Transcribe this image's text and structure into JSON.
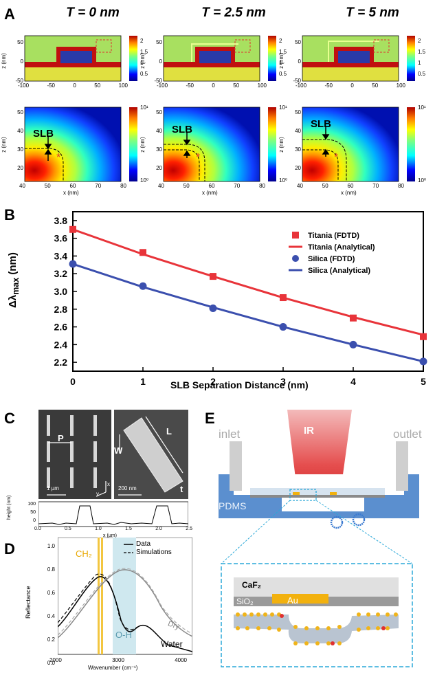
{
  "panels": {
    "A": {
      "label": "A",
      "titles": [
        "T = 0 nm",
        "T = 2.5 nm",
        "T = 5 nm"
      ],
      "top_colorbar_ticks": [
        "2",
        "1.5",
        "1",
        "0.5"
      ],
      "top_x_ticks": [
        "-100",
        "-50",
        "0",
        "50",
        "100"
      ],
      "top_y_ticks": [
        "50",
        "0",
        "-50"
      ],
      "top_ylabel": "z (nm)",
      "bottom_colorbar_ticks": [
        "10¹",
        "10⁰"
      ],
      "bottom_x_ticks": [
        "40",
        "50",
        "60",
        "70",
        "80"
      ],
      "bottom_y_ticks": [
        "50",
        "40",
        "30",
        "20"
      ],
      "bottom_xlabel": "x (nm)",
      "bottom_ylabel": "z (nm)",
      "slb_label": "SLB"
    },
    "B": {
      "label": "B",
      "chart_data": {
        "type": "line",
        "xlabel": "SLB Separation Distance (nm)",
        "ylabel": "Δλmax (nm)",
        "ylabel_main": "Δλ",
        "ylabel_sub": "max",
        "ylabel_unit": " (nm)",
        "x": [
          0,
          1,
          2,
          3,
          4,
          5
        ],
        "xlim": [
          0,
          5
        ],
        "ylim": [
          2.1,
          3.9
        ],
        "x_ticks": [
          "0",
          "1",
          "2",
          "3",
          "4",
          "5"
        ],
        "y_ticks": [
          "2.2",
          "2.4",
          "2.6",
          "2.8",
          "3.0",
          "3.2",
          "3.4",
          "3.6",
          "3.8"
        ],
        "legend_position": "top-right",
        "series": [
          {
            "name": "Titania (FDTD)",
            "kind": "markers",
            "marker": "square",
            "color": "#e8343a",
            "values": [
              3.7,
              3.44,
              3.17,
              2.93,
              2.7,
              2.49
            ]
          },
          {
            "name": "Titania (Analytical)",
            "kind": "line",
            "color": "#e8343a",
            "values": [
              3.7,
              3.42,
              3.17,
              2.93,
              2.71,
              2.51
            ]
          },
          {
            "name": "Silica (FDTD)",
            "kind": "markers",
            "marker": "circle",
            "color": "#3b4fae",
            "values": [
              3.31,
              3.06,
              2.81,
              2.6,
              2.4,
              2.21
            ]
          },
          {
            "name": "Silica (Analytical)",
            "kind": "line",
            "color": "#3b4fae",
            "values": [
              3.31,
              3.05,
              2.82,
              2.6,
              2.4,
              2.21
            ]
          }
        ]
      }
    },
    "C": {
      "label": "C",
      "sem_labels": {
        "P": "P",
        "W": "W",
        "L": "L",
        "t": "t",
        "scale1": "1 µm",
        "scale2": "200 nm",
        "axis_x": "x",
        "axis_y": "y"
      },
      "profile_ylabel": "height (nm)",
      "profile_xlabel": "x (µm)",
      "profile_y_ticks": [
        "100",
        "50",
        "0"
      ],
      "profile_x_ticks": [
        "0.0",
        "0.5",
        "1.0",
        "1.5",
        "2.0",
        "2.5"
      ]
    },
    "D": {
      "label": "D",
      "ylabel": "Reflectance",
      "xlabel": "Wavenumber (cm⁻¹)",
      "y_ticks": [
        "1.0",
        "0.8",
        "0.6",
        "0.4",
        "0.2",
        "0.0"
      ],
      "x_ticks": [
        "2000",
        "3000",
        "4000"
      ],
      "legend": {
        "data": "Data",
        "sim": "Simulations"
      },
      "band_ch2": "CH₂",
      "band_oh": "O-H",
      "curve_dry": "Dry",
      "curve_water": "Water"
    },
    "E": {
      "label": "E",
      "ir": "IR",
      "inlet": "inlet",
      "outlet": "outlet",
      "pdms": "PDMS",
      "caf2": "CaF₂",
      "sio2": "SiO₂",
      "au": "Au"
    }
  }
}
